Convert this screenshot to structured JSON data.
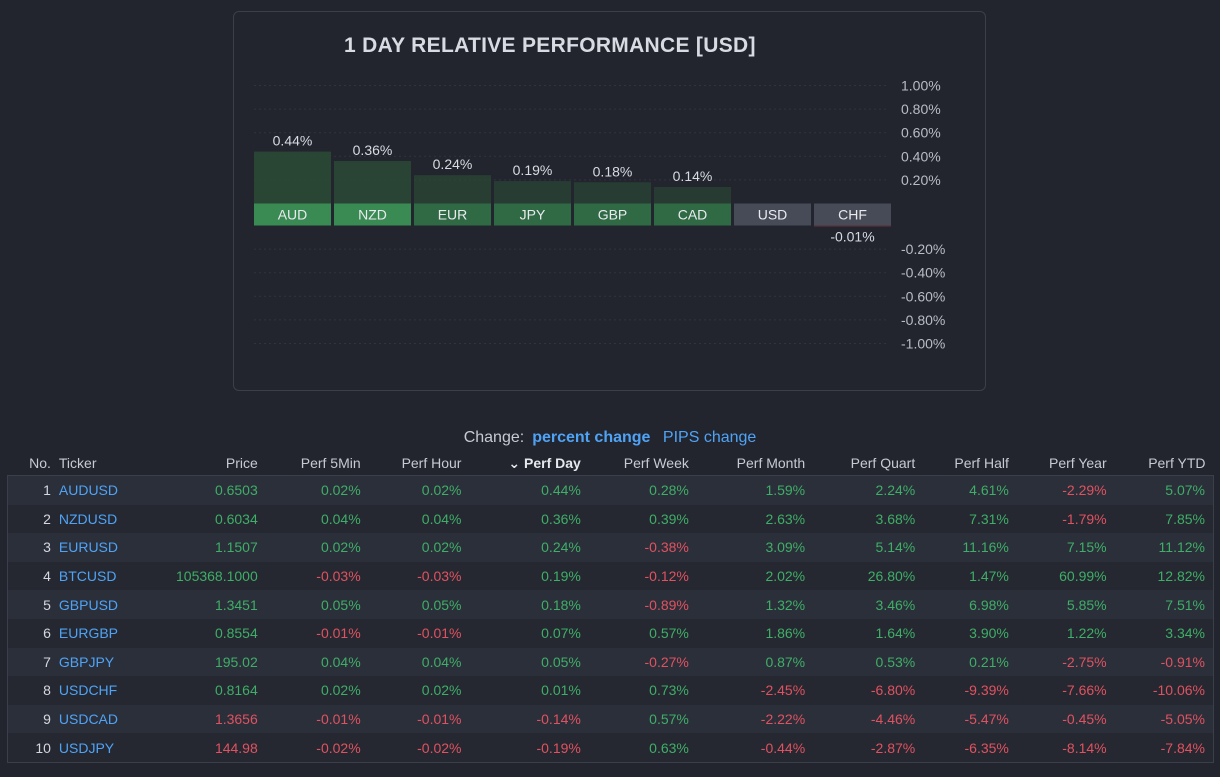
{
  "chart_data": {
    "type": "bar",
    "title": "1 DAY RELATIVE PERFORMANCE  [USD]",
    "categories": [
      "AUD",
      "NZD",
      "EUR",
      "JPY",
      "GBP",
      "CAD",
      "USD",
      "CHF"
    ],
    "values": [
      0.44,
      0.36,
      0.24,
      0.19,
      0.18,
      0.14,
      0.0,
      -0.01
    ],
    "value_labels": [
      "0.44%",
      "0.36%",
      "0.24%",
      "0.19%",
      "0.18%",
      "0.14%",
      "",
      "-0.01%"
    ],
    "ylim": [
      -1.0,
      1.0
    ],
    "yticks": [
      "1.00%",
      "0.80%",
      "0.60%",
      "0.40%",
      "0.20%",
      "-0.20%",
      "-0.40%",
      "-0.60%",
      "-0.80%",
      "-1.00%"
    ],
    "ytick_values": [
      1.0,
      0.8,
      0.6,
      0.4,
      0.2,
      -0.2,
      -0.4,
      -0.6,
      -0.8,
      -1.0
    ],
    "grid": true
  },
  "change": {
    "label": "Change:",
    "active": "percent change",
    "other": "PIPS change"
  },
  "table": {
    "headers": {
      "no": "No.",
      "ticker": "Ticker",
      "price": "Price",
      "perf5min": "Perf 5Min",
      "perfhour": "Perf Hour",
      "perfday": "Perf Day",
      "perfweek": "Perf Week",
      "perfmonth": "Perf Month",
      "perfquart": "Perf Quart",
      "perfhalf": "Perf Half",
      "perfyear": "Perf Year",
      "perfytd": "Perf YTD"
    },
    "rows": [
      {
        "no": "1",
        "ticker": "AUDUSD",
        "price": "0.6503",
        "p5": "0.02%",
        "ph": "0.02%",
        "pd": "0.44%",
        "pw": "0.28%",
        "pm": "1.59%",
        "pq": "2.24%",
        "phf": "4.61%",
        "py": "-2.29%",
        "pytd": "5.07%"
      },
      {
        "no": "2",
        "ticker": "NZDUSD",
        "price": "0.6034",
        "p5": "0.04%",
        "ph": "0.04%",
        "pd": "0.36%",
        "pw": "0.39%",
        "pm": "2.63%",
        "pq": "3.68%",
        "phf": "7.31%",
        "py": "-1.79%",
        "pytd": "7.85%"
      },
      {
        "no": "3",
        "ticker": "EURUSD",
        "price": "1.1507",
        "p5": "0.02%",
        "ph": "0.02%",
        "pd": "0.24%",
        "pw": "-0.38%",
        "pm": "3.09%",
        "pq": "5.14%",
        "phf": "11.16%",
        "py": "7.15%",
        "pytd": "11.12%"
      },
      {
        "no": "4",
        "ticker": "BTCUSD",
        "price": "105368.1000",
        "p5": "-0.03%",
        "ph": "-0.03%",
        "pd": "0.19%",
        "pw": "-0.12%",
        "pm": "2.02%",
        "pq": "26.80%",
        "phf": "1.47%",
        "py": "60.99%",
        "pytd": "12.82%"
      },
      {
        "no": "5",
        "ticker": "GBPUSD",
        "price": "1.3451",
        "p5": "0.05%",
        "ph": "0.05%",
        "pd": "0.18%",
        "pw": "-0.89%",
        "pm": "1.32%",
        "pq": "3.46%",
        "phf": "6.98%",
        "py": "5.85%",
        "pytd": "7.51%"
      },
      {
        "no": "6",
        "ticker": "EURGBP",
        "price": "0.8554",
        "p5": "-0.01%",
        "ph": "-0.01%",
        "pd": "0.07%",
        "pw": "0.57%",
        "pm": "1.86%",
        "pq": "1.64%",
        "phf": "3.90%",
        "py": "1.22%",
        "pytd": "3.34%"
      },
      {
        "no": "7",
        "ticker": "GBPJPY",
        "price": "195.02",
        "p5": "0.04%",
        "ph": "0.04%",
        "pd": "0.05%",
        "pw": "-0.27%",
        "pm": "0.87%",
        "pq": "0.53%",
        "phf": "0.21%",
        "py": "-2.75%",
        "pytd": "-0.91%"
      },
      {
        "no": "8",
        "ticker": "USDCHF",
        "price": "0.8164",
        "p5": "0.02%",
        "ph": "0.02%",
        "pd": "0.01%",
        "pw": "0.73%",
        "pm": "-2.45%",
        "pq": "-6.80%",
        "phf": "-9.39%",
        "py": "-7.66%",
        "pytd": "-10.06%"
      },
      {
        "no": "9",
        "ticker": "USDCAD",
        "price": "1.3656",
        "p5": "-0.01%",
        "ph": "-0.01%",
        "pd": "-0.14%",
        "pw": "0.57%",
        "pm": "-2.22%",
        "pq": "-4.46%",
        "phf": "-5.47%",
        "py": "-0.45%",
        "pytd": "-5.05%"
      },
      {
        "no": "10",
        "ticker": "USDJPY",
        "price": "144.98",
        "p5": "-0.02%",
        "ph": "-0.02%",
        "pd": "-0.19%",
        "pw": "0.63%",
        "pm": "-0.44%",
        "pq": "-2.87%",
        "phf": "-6.35%",
        "py": "-8.14%",
        "pytd": "-7.84%"
      }
    ]
  },
  "colors": {
    "positive": "#3fae68",
    "negative": "#e05261",
    "link": "#4fa3f7"
  }
}
